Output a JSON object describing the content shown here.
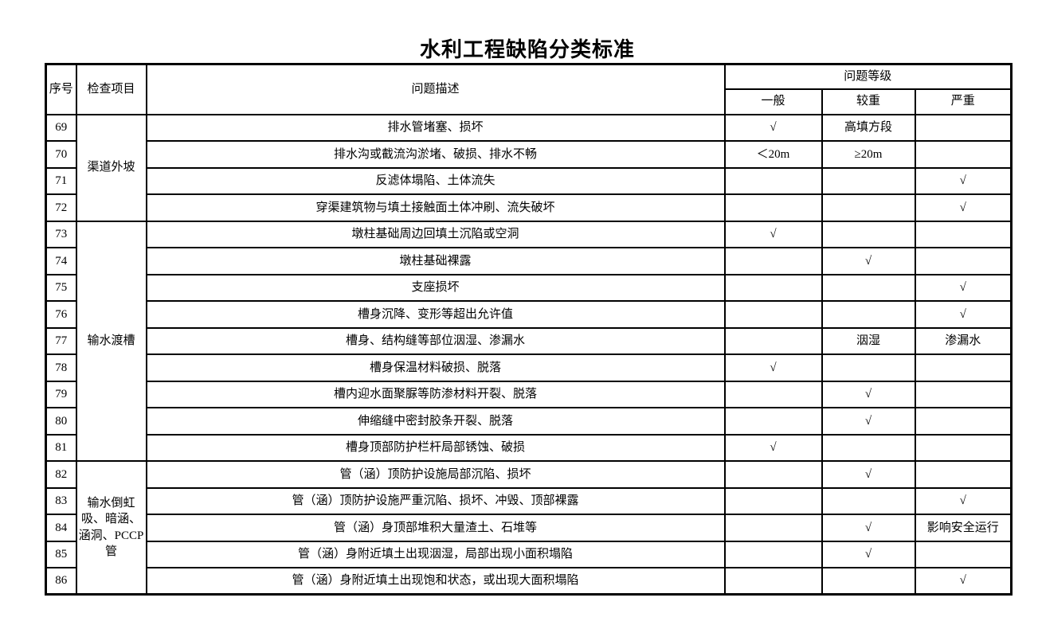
{
  "page": {
    "title": "水利工程缺陷分类标准",
    "background_color": "#ffffff",
    "border_color": "#000000",
    "text_color": "#000000",
    "check_mark": "√"
  },
  "table": {
    "headers": {
      "index": "序号",
      "item": "检查项目",
      "description": "问题描述",
      "level_group": "问题等级",
      "levels": [
        "一般",
        "较重",
        "严重"
      ]
    },
    "groups": [
      {
        "item": "渠道外坡",
        "rows": [
          {
            "no": "69",
            "desc": "排水管堵塞、损坏",
            "general": "√",
            "serious": "高填方段",
            "severe": ""
          },
          {
            "no": "70",
            "desc": "排水沟或截流沟淤堵、破损、排水不畅",
            "general": "＜20m",
            "serious": "≥20m",
            "severe": ""
          },
          {
            "no": "71",
            "desc": "反滤体塌陷、土体流失",
            "general": "",
            "serious": "",
            "severe": "√"
          },
          {
            "no": "72",
            "desc": "穿渠建筑物与填土接触面土体冲刷、流失破坏",
            "general": "",
            "serious": "",
            "severe": "√"
          }
        ]
      },
      {
        "item": "输水渡槽",
        "rows": [
          {
            "no": "73",
            "desc": "墩柱基础周边回填土沉陷或空洞",
            "general": "√",
            "serious": "",
            "severe": ""
          },
          {
            "no": "74",
            "desc": "墩柱基础裸露",
            "general": "",
            "serious": "√",
            "severe": ""
          },
          {
            "no": "75",
            "desc": "支座损坏",
            "general": "",
            "serious": "",
            "severe": "√"
          },
          {
            "no": "76",
            "desc": "槽身沉降、变形等超出允许值",
            "general": "",
            "serious": "",
            "severe": "√"
          },
          {
            "no": "77",
            "desc": "槽身、结构缝等部位洇湿、渗漏水",
            "general": "",
            "serious": "洇湿",
            "severe": "渗漏水"
          },
          {
            "no": "78",
            "desc": "槽身保温材料破损、脱落",
            "general": "√",
            "serious": "",
            "severe": ""
          },
          {
            "no": "79",
            "desc": "槽内迎水面聚脲等防渗材料开裂、脱落",
            "general": "",
            "serious": "√",
            "severe": ""
          },
          {
            "no": "80",
            "desc": "伸缩缝中密封胶条开裂、脱落",
            "general": "",
            "serious": "√",
            "severe": ""
          },
          {
            "no": "81",
            "desc": "槽身顶部防护栏杆局部锈蚀、破损",
            "general": "√",
            "serious": "",
            "severe": ""
          }
        ]
      },
      {
        "item": "输水倒虹吸、暗涵、涵洞、PCCP管",
        "rows": [
          {
            "no": "82",
            "desc": "管（涵）顶防护设施局部沉陷、损坏",
            "general": "",
            "serious": "√",
            "severe": ""
          },
          {
            "no": "83",
            "desc": "管（涵）顶防护设施严重沉陷、损坏、冲毁、顶部裸露",
            "general": "",
            "serious": "",
            "severe": "√"
          },
          {
            "no": "84",
            "desc": "管（涵）身顶部堆积大量渣土、石堆等",
            "general": "",
            "serious": "√",
            "severe": "影响安全运行"
          },
          {
            "no": "85",
            "desc": "管（涵）身附近填土出现洇湿，局部出现小面积塌陷",
            "general": "",
            "serious": "√",
            "severe": ""
          },
          {
            "no": "86",
            "desc": "管（涵）身附近填土出现饱和状态，或出现大面积塌陷",
            "general": "",
            "serious": "",
            "severe": "√"
          }
        ]
      }
    ]
  }
}
